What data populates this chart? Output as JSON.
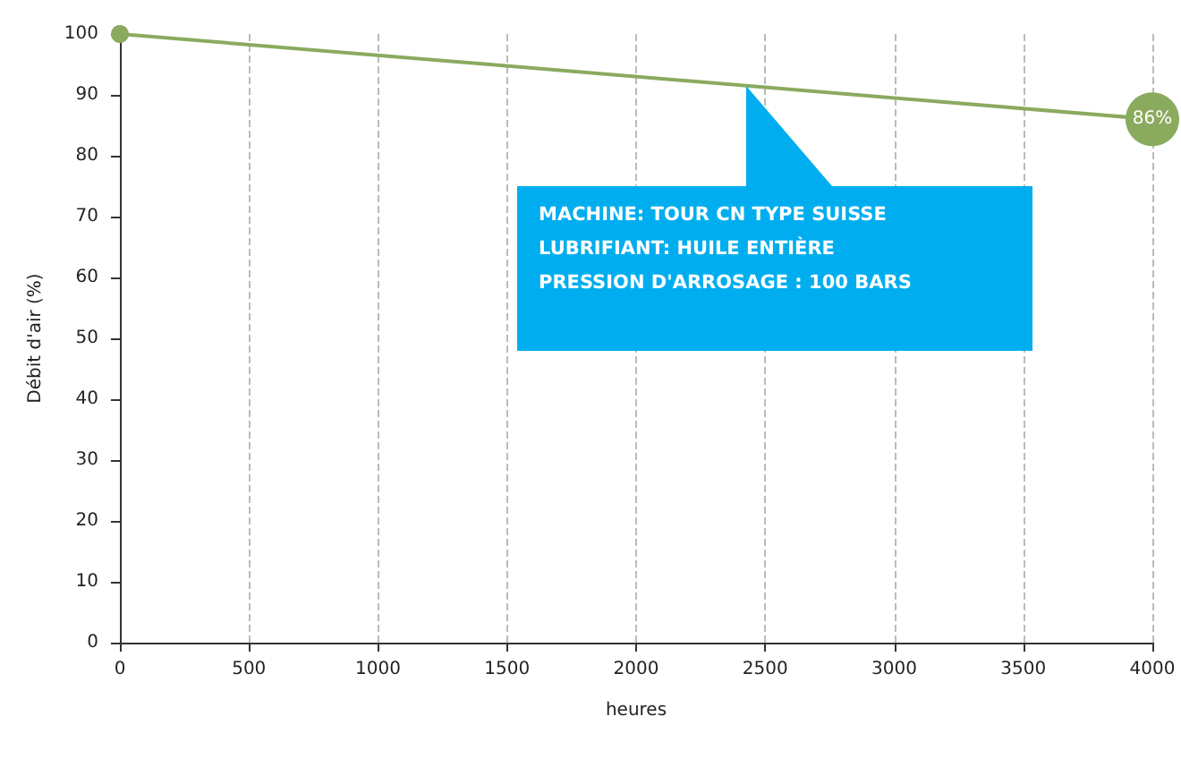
{
  "chart_data": {
    "type": "line",
    "xlabel": "heures",
    "ylabel": "Débit d'air (%)",
    "x": [
      0,
      4000
    ],
    "series": [
      {
        "color": "#8aaa5e",
        "values": [
          100,
          86
        ],
        "value_labels": [
          null,
          "86%"
        ]
      }
    ],
    "xlim": [
      0,
      4000
    ],
    "xticks": [
      0,
      500,
      1000,
      1500,
      2000,
      2500,
      3000,
      3500,
      4000
    ],
    "ylim": [
      0,
      100
    ],
    "yticks": [
      0,
      10,
      20,
      30,
      40,
      50,
      60,
      70,
      80,
      90,
      100
    ],
    "grid": "x",
    "marker": "circle",
    "line_style": "solid",
    "annotations": [
      "MACHINE: TOUR CN TYPE SUISSE",
      "LUBRIFIANT: HUILE ENTIÈRE",
      "PRESSION D'ARROSAGE : 100 BARS"
    ]
  }
}
